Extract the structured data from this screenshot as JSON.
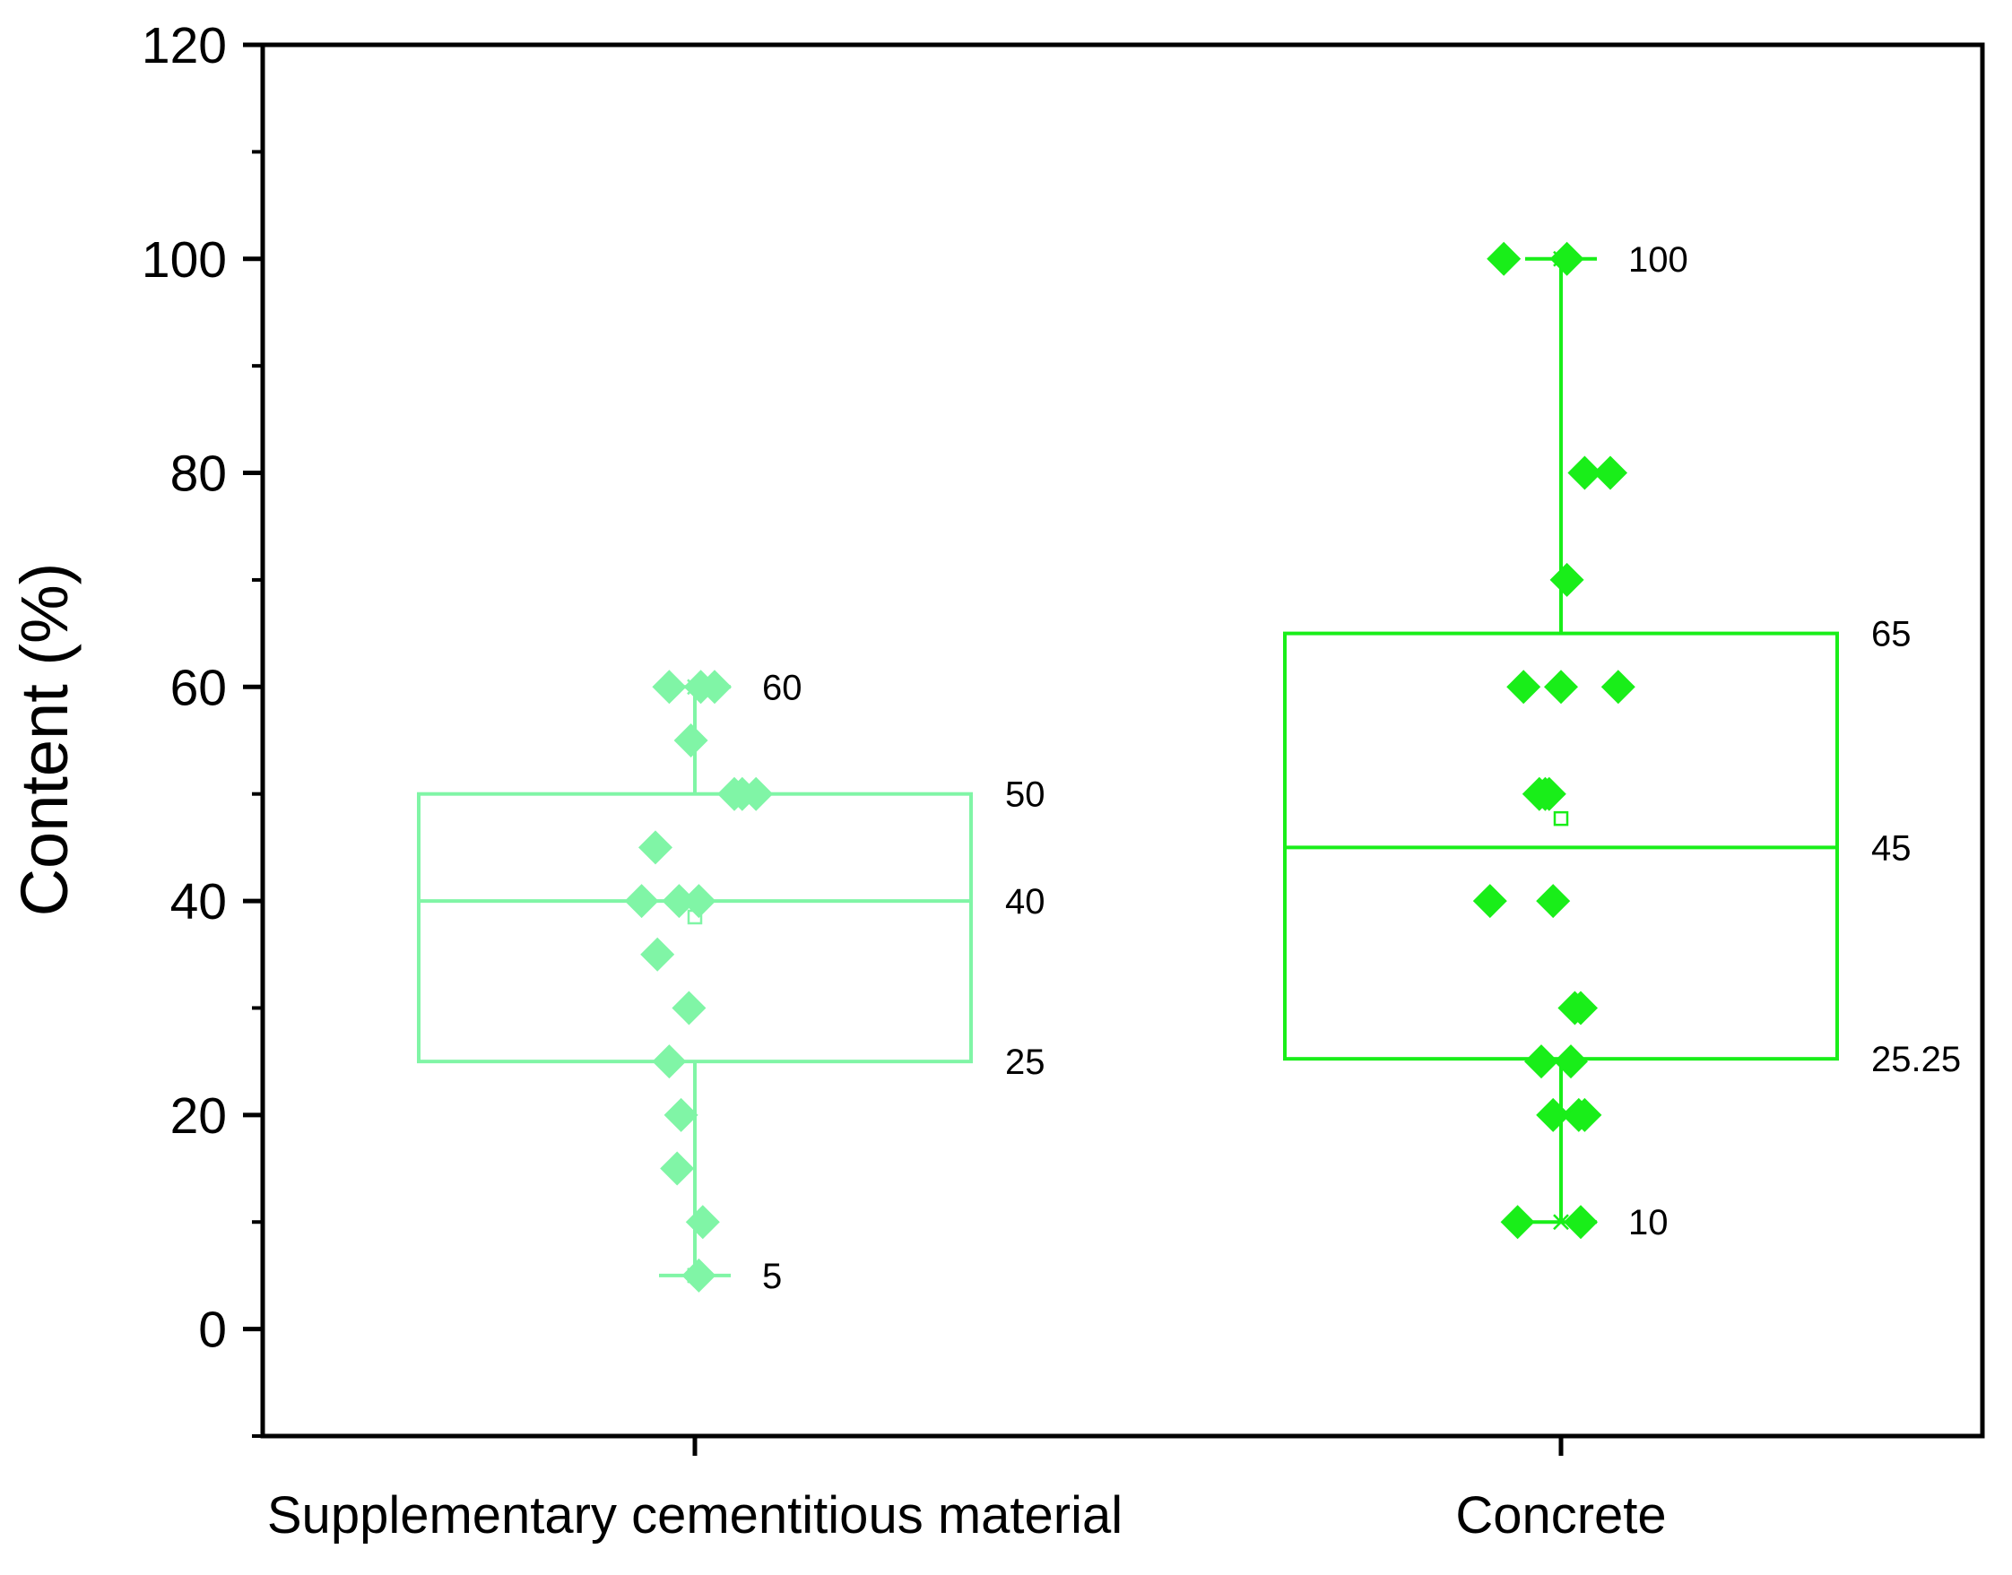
{
  "chart_data": {
    "type": "box",
    "title": "",
    "xlabel": "",
    "ylabel": "Content (%)",
    "ylim": [
      -10,
      120
    ],
    "yticks": [
      0,
      20,
      40,
      60,
      80,
      100,
      120
    ],
    "categories": [
      "Supplementary cementitious material",
      "Concrete"
    ],
    "boxes": [
      {
        "name": "Supplementary cementitious material",
        "color": "#80f5a6",
        "min": 5,
        "q1": 25,
        "median": 40,
        "q3": 50,
        "max": 60,
        "mean": 38.5,
        "labels": {
          "max": "60",
          "q3": "50",
          "median": "40",
          "q1": "25",
          "min": "5"
        },
        "points": [
          {
            "value": 60,
            "offset": -0.13
          },
          {
            "value": 60,
            "offset": 0.03
          },
          {
            "value": 60,
            "offset": 0.1
          },
          {
            "value": 55,
            "offset": -0.02
          },
          {
            "value": 50,
            "offset": 0.2
          },
          {
            "value": 50,
            "offset": 0.24
          },
          {
            "value": 50,
            "offset": 0.31
          },
          {
            "value": 45,
            "offset": -0.2
          },
          {
            "value": 40,
            "offset": -0.27
          },
          {
            "value": 40,
            "offset": -0.08
          },
          {
            "value": 40,
            "offset": 0.02
          },
          {
            "value": 35,
            "offset": -0.19
          },
          {
            "value": 30,
            "offset": -0.03
          },
          {
            "value": 25,
            "offset": -0.13
          },
          {
            "value": 20,
            "offset": -0.07
          },
          {
            "value": 15,
            "offset": -0.09
          },
          {
            "value": 10,
            "offset": 0.04
          },
          {
            "value": 5,
            "offset": 0.02
          }
        ]
      },
      {
        "name": "Concrete",
        "color": "#19ee19",
        "min": 10,
        "q1": 25.25,
        "median": 45,
        "q3": 65,
        "max": 100,
        "mean": 47.7,
        "labels": {
          "max": "100",
          "q3": "65",
          "median": "45",
          "q1": "25.25",
          "min": "10"
        },
        "points": [
          {
            "value": 100,
            "offset": -0.29
          },
          {
            "value": 100,
            "offset": 0.03
          },
          {
            "value": 80,
            "offset": 0.12
          },
          {
            "value": 80,
            "offset": 0.25
          },
          {
            "value": 70,
            "offset": 0.03
          },
          {
            "value": 60,
            "offset": -0.19
          },
          {
            "value": 60,
            "offset": 0.0
          },
          {
            "value": 60,
            "offset": 0.29
          },
          {
            "value": 50,
            "offset": -0.11
          },
          {
            "value": 50,
            "offset": -0.08
          },
          {
            "value": 50,
            "offset": -0.06
          },
          {
            "value": 40,
            "offset": -0.36
          },
          {
            "value": 40,
            "offset": -0.04
          },
          {
            "value": 30,
            "offset": 0.07
          },
          {
            "value": 30,
            "offset": 0.1
          },
          {
            "value": 25,
            "offset": -0.1
          },
          {
            "value": 25,
            "offset": 0.05
          },
          {
            "value": 20,
            "offset": -0.04
          },
          {
            "value": 20,
            "offset": 0.09
          },
          {
            "value": 20,
            "offset": 0.12
          },
          {
            "value": 10,
            "offset": -0.22
          },
          {
            "value": 10,
            "offset": 0.1
          }
        ]
      }
    ]
  }
}
